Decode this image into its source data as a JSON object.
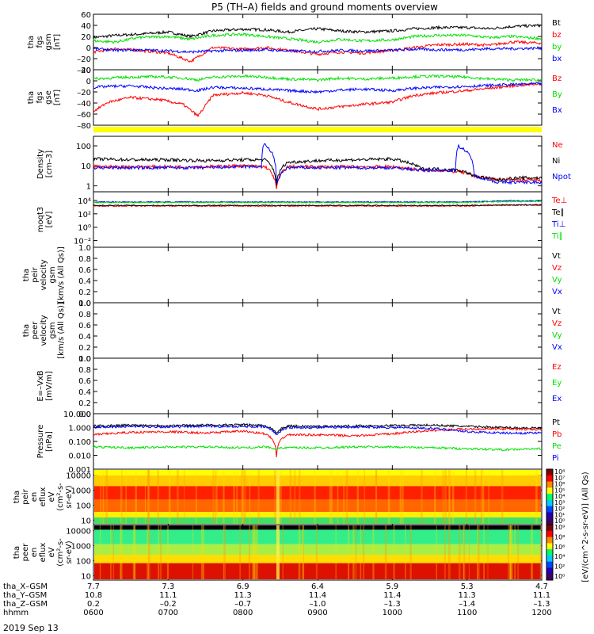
{
  "title": "P5 (TH–A) fields and ground moments overview",
  "date": "2019 Sep 13",
  "colors": {
    "black": "#000000",
    "red": "#ff0000",
    "green": "#00e000",
    "blue": "#0000ff",
    "yellow": "#ffff00"
  },
  "ephemeris": {
    "rows": [
      {
        "label": "tha_X–GSM",
        "values": [
          "7.7",
          "7.3",
          "6.9",
          "6.4",
          "5.9",
          "5.3",
          "4.7"
        ]
      },
      {
        "label": "tha_Y–GSM",
        "values": [
          "10.8",
          "11.1",
          "11.3",
          "11.4",
          "11.4",
          "11.3",
          "11.1"
        ]
      },
      {
        "label": "tha_Z–GSM",
        "values": [
          "0.2",
          "–0.2",
          "–0.7",
          "–1.0",
          "–1.3",
          "–1.4",
          "–1.3"
        ]
      },
      {
        "label": "hhmm",
        "values": [
          "0600",
          "0700",
          "0800",
          "0900",
          "1000",
          "1100",
          "1200"
        ]
      }
    ]
  },
  "chart_data": [
    {
      "type": "line",
      "ylabel_lines": [
        "tha",
        "fgs",
        "gsm",
        "[nT]"
      ],
      "ylim": [
        -40,
        60
      ],
      "yticks": [
        "60",
        "40",
        "20",
        "0",
        "–20",
        "–40"
      ],
      "xlim": [
        600,
        1200
      ],
      "series": [
        {
          "name": "Bt",
          "color": "#000000",
          "x": [
            600,
            630,
            660,
            700,
            730,
            760,
            800,
            830,
            860,
            900,
            930,
            960,
            1000,
            1030,
            1060,
            1100,
            1130,
            1160,
            1200
          ],
          "y": [
            18,
            22,
            24,
            28,
            20,
            30,
            33,
            32,
            28,
            34,
            30,
            28,
            30,
            34,
            36,
            36,
            34,
            38,
            40
          ]
        },
        {
          "name": "bz",
          "color": "#ff0000",
          "x": [
            600,
            630,
            660,
            700,
            730,
            760,
            800,
            830,
            860,
            900,
            930,
            960,
            1000,
            1030,
            1060,
            1100,
            1130,
            1160,
            1200
          ],
          "y": [
            -8,
            -2,
            -5,
            -10,
            -25,
            0,
            -3,
            0,
            -5,
            -12,
            -8,
            -10,
            -5,
            0,
            5,
            6,
            4,
            10,
            8
          ]
        },
        {
          "name": "by",
          "color": "#00e000",
          "x": [
            600,
            630,
            660,
            700,
            730,
            760,
            800,
            830,
            860,
            900,
            930,
            960,
            1000,
            1030,
            1060,
            1100,
            1130,
            1160,
            1200
          ],
          "y": [
            12,
            10,
            18,
            20,
            15,
            22,
            24,
            20,
            16,
            10,
            15,
            12,
            14,
            20,
            22,
            22,
            18,
            20,
            16
          ]
        },
        {
          "name": "bx",
          "color": "#0000ff",
          "x": [
            600,
            630,
            660,
            700,
            730,
            760,
            800,
            830,
            860,
            900,
            930,
            960,
            1000,
            1030,
            1060,
            1100,
            1130,
            1160,
            1200
          ],
          "y": [
            -2,
            -5,
            -4,
            -6,
            -8,
            -6,
            -5,
            -4,
            -6,
            -7,
            -5,
            -6,
            -5,
            -3,
            -4,
            -4,
            -2,
            -2,
            -1
          ]
        }
      ]
    },
    {
      "type": "line",
      "ylabel_lines": [
        "tha",
        "fgs",
        "gse",
        "[nT]"
      ],
      "ylim": [
        -90,
        30
      ],
      "yticks": [
        "20",
        "0",
        "–20",
        "–40",
        "–60",
        "–80"
      ],
      "xlim": [
        600,
        1200
      ],
      "series": [
        {
          "name": "Bz",
          "color": "#ff0000",
          "x": [
            600,
            620,
            650,
            690,
            720,
            740,
            760,
            800,
            830,
            860,
            900,
            930,
            960,
            1000,
            1030,
            1060,
            1100,
            1130,
            1160,
            1200
          ],
          "y": [
            -60,
            -40,
            -30,
            -35,
            -45,
            -70,
            -25,
            -20,
            -25,
            -40,
            -55,
            -50,
            -45,
            -40,
            -25,
            -20,
            -15,
            -10,
            -5,
            0
          ]
        },
        {
          "name": "By",
          "color": "#00e000",
          "x": [
            600,
            620,
            650,
            690,
            720,
            740,
            760,
            800,
            830,
            860,
            900,
            930,
            960,
            1000,
            1030,
            1060,
            1100,
            1130,
            1160,
            1200
          ],
          "y": [
            10,
            12,
            14,
            15,
            12,
            8,
            14,
            16,
            14,
            10,
            8,
            12,
            10,
            12,
            15,
            16,
            14,
            10,
            8,
            8
          ]
        },
        {
          "name": "Bx",
          "color": "#0000ff",
          "x": [
            600,
            620,
            650,
            690,
            720,
            740,
            760,
            800,
            830,
            860,
            900,
            930,
            960,
            1000,
            1030,
            1060,
            1100,
            1130,
            1160,
            1200
          ],
          "y": [
            -8,
            -6,
            -5,
            -10,
            -12,
            -15,
            -8,
            -10,
            -12,
            -15,
            -18,
            -14,
            -12,
            -15,
            -10,
            -8,
            -6,
            -4,
            -2,
            0
          ]
        }
      ]
    },
    {
      "type": "line",
      "ylabel_lines": [
        "Density",
        "[cm–3]"
      ],
      "yscale": "log",
      "ylim": [
        0.5,
        300
      ],
      "yticks": [
        {
          "v": 100,
          "label": "100"
        },
        {
          "v": 10,
          "label": "10"
        },
        {
          "v": 1,
          "label": "1"
        }
      ],
      "xlim": [
        600,
        1200
      ],
      "series": [
        {
          "name": "Ne",
          "color": "#ff0000",
          "x": [
            600,
            650,
            700,
            750,
            800,
            830,
            845,
            860,
            900,
            950,
            1000,
            1040,
            1060,
            1090,
            1110,
            1140,
            1170,
            1200
          ],
          "y": [
            9,
            9,
            9,
            9,
            10,
            9,
            0.6,
            9,
            9,
            9,
            9,
            6,
            6,
            5,
            3,
            2,
            2,
            2
          ]
        },
        {
          "name": "Ni",
          "color": "#000000",
          "x": [
            600,
            650,
            700,
            750,
            800,
            830,
            845,
            860,
            900,
            950,
            1000,
            1040,
            1060,
            1090,
            1110,
            1140,
            1170,
            1200
          ],
          "y": [
            22,
            20,
            20,
            18,
            20,
            20,
            1,
            15,
            18,
            20,
            22,
            7,
            7,
            6,
            3,
            2,
            2.5,
            2.5
          ]
        },
        {
          "name": "Npot",
          "color": "#0000ff",
          "x": [
            600,
            650,
            700,
            750,
            800,
            825,
            828,
            845,
            860,
            900,
            950,
            1000,
            1040,
            1085,
            1088,
            1110,
            1140,
            1170,
            1200
          ],
          "y": [
            8,
            8,
            8,
            8,
            9,
            9,
            120,
            0.8,
            8,
            8,
            8,
            8,
            6,
            6,
            100,
            3,
            1.5,
            1.5,
            1.5
          ]
        }
      ]
    },
    {
      "type": "line",
      "ylabel_lines": [
        "moqt3",
        "[eV]"
      ],
      "yscale": "log",
      "ylim": [
        0.001,
        200000
      ],
      "yticks": [
        {
          "v": 10000,
          "label": "10⁴"
        },
        {
          "v": 100,
          "label": "10²"
        },
        {
          "v": 1,
          "label": "10⁰"
        },
        {
          "v": 0.01,
          "label": "10⁻²"
        }
      ],
      "xlim": [
        600,
        1200
      ],
      "series": [
        {
          "name": "Te⊥",
          "color": "#ff0000",
          "x": [
            600,
            700,
            800,
            900,
            1000,
            1100,
            1150,
            1200
          ],
          "y": [
            1500,
            1500,
            1500,
            1500,
            1500,
            1500,
            2000,
            2000
          ]
        },
        {
          "name": "Te∥",
          "color": "#000000",
          "x": [
            600,
            700,
            800,
            900,
            1000,
            1100,
            1150,
            1200
          ],
          "y": [
            1800,
            1800,
            1800,
            1800,
            1800,
            1800,
            2200,
            2200
          ]
        },
        {
          "name": "Ti⊥",
          "color": "#0000ff",
          "x": [
            600,
            700,
            800,
            900,
            1000,
            1100,
            1150,
            1200
          ],
          "y": [
            6000,
            6000,
            6000,
            6000,
            6000,
            6000,
            9000,
            9000
          ]
        },
        {
          "name": "Ti∥",
          "color": "#00e000",
          "x": [
            600,
            700,
            800,
            900,
            1000,
            1100,
            1150,
            1200
          ],
          "y": [
            5000,
            5000,
            5000,
            5000,
            5000,
            5000,
            7000,
            7000
          ]
        }
      ]
    },
    {
      "type": "line",
      "ylabel_lines": [
        "tha",
        "peir",
        "velocity",
        "gsm",
        "[km/s (All Qs)]"
      ],
      "ylim": [
        0,
        1
      ],
      "yticks": [
        "1.0",
        "0.8",
        "0.6",
        "0.4",
        "0.2",
        "0.0"
      ],
      "xlim": [
        600,
        1200
      ],
      "series": [
        {
          "name": "Vt",
          "color": "#000000",
          "x": [],
          "y": []
        },
        {
          "name": "Vz",
          "color": "#ff0000",
          "x": [],
          "y": []
        },
        {
          "name": "Vy",
          "color": "#00e000",
          "x": [],
          "y": []
        },
        {
          "name": "Vx",
          "color": "#0000ff",
          "x": [],
          "y": []
        }
      ]
    },
    {
      "type": "line",
      "ylabel_lines": [
        "tha",
        "peer",
        "velocity",
        "gsm",
        "[km/s (All Qs)]"
      ],
      "ylim": [
        0,
        1
      ],
      "yticks": [
        "1.0",
        "0.8",
        "0.6",
        "0.4",
        "0.2",
        "0.0"
      ],
      "xlim": [
        600,
        1200
      ],
      "series": [
        {
          "name": "Vt",
          "color": "#000000",
          "x": [],
          "y": []
        },
        {
          "name": "Vz",
          "color": "#ff0000",
          "x": [],
          "y": []
        },
        {
          "name": "Vy",
          "color": "#00e000",
          "x": [],
          "y": []
        },
        {
          "name": "Vx",
          "color": "#0000ff",
          "x": [],
          "y": []
        }
      ]
    },
    {
      "type": "line",
      "ylabel_lines": [
        "E=–VxB",
        "[mV/m]"
      ],
      "ylim": [
        0,
        1
      ],
      "yticks": [
        "1.0",
        "0.8",
        "0.6",
        "0.4",
        "0.2",
        "0.0"
      ],
      "xlim": [
        600,
        1200
      ],
      "series": [
        {
          "name": "Ez",
          "color": "#ff0000",
          "x": [],
          "y": []
        },
        {
          "name": "Ey",
          "color": "#00e000",
          "x": [],
          "y": []
        },
        {
          "name": "Ex",
          "color": "#0000ff",
          "x": [],
          "y": []
        }
      ]
    },
    {
      "type": "line",
      "ylabel_lines": [
        "Pressure",
        "[nPa]"
      ],
      "yscale": "log",
      "ylim": [
        0.001,
        10
      ],
      "yticks": [
        {
          "v": 10,
          "label": "10.000"
        },
        {
          "v": 1,
          "label": "1.000"
        },
        {
          "v": 0.1,
          "label": "0.100"
        },
        {
          "v": 0.01,
          "label": "0.010"
        },
        {
          "v": 0.001,
          "label": "0.001"
        }
      ],
      "xlim": [
        600,
        1200
      ],
      "series": [
        {
          "name": "Pt",
          "color": "#000000",
          "x": [
            600,
            650,
            700,
            750,
            800,
            830,
            845,
            860,
            900,
            950,
            1000,
            1050,
            1100,
            1150,
            1200
          ],
          "y": [
            1.3,
            1.5,
            1.4,
            1.5,
            1.6,
            1.4,
            0.4,
            1.3,
            1.2,
            1.3,
            1.4,
            1.5,
            1.2,
            1,
            0.9
          ]
        },
        {
          "name": "Pb",
          "color": "#ff0000",
          "x": [
            600,
            650,
            700,
            750,
            800,
            830,
            845,
            860,
            900,
            950,
            1000,
            1050,
            1100,
            1150,
            1200
          ],
          "y": [
            0.3,
            0.45,
            0.5,
            0.4,
            0.55,
            0.35,
            0.005,
            0.3,
            0.3,
            0.25,
            0.35,
            0.6,
            0.8,
            0.8,
            0.7
          ]
        },
        {
          "name": "Pe",
          "color": "#00e000",
          "x": [
            600,
            650,
            700,
            750,
            800,
            830,
            845,
            860,
            900,
            950,
            1000,
            1050,
            1100,
            1150,
            1200
          ],
          "y": [
            0.04,
            0.035,
            0.04,
            0.04,
            0.035,
            0.04,
            0.03,
            0.035,
            0.035,
            0.04,
            0.04,
            0.035,
            0.03,
            0.025,
            0.03
          ]
        },
        {
          "name": "Pi",
          "color": "#0000ff",
          "x": [
            600,
            650,
            700,
            750,
            800,
            830,
            845,
            860,
            900,
            950,
            1000,
            1050,
            1100,
            1150,
            1200
          ],
          "y": [
            1,
            1.2,
            1.1,
            1.2,
            1.2,
            1.1,
            0.3,
            1,
            1,
            1.1,
            1,
            0.9,
            0.5,
            0.4,
            0.4
          ]
        }
      ]
    },
    {
      "type": "heatmap",
      "ylabel_lines": [
        "tha",
        "peir",
        "en",
        "eflux",
        "eV",
        "(cm²-s-",
        "sr-eV)"
      ],
      "yscale": "log",
      "ylim": [
        5,
        25000
      ],
      "yticks": [
        {
          "v": 10000,
          "label": "10000"
        },
        {
          "v": 1000,
          "label": "1000"
        },
        {
          "v": 100,
          "label": "100"
        },
        {
          "v": 10,
          "label": "10"
        }
      ],
      "xlim": [
        600,
        1200
      ],
      "colorbar": {
        "label": "[eV/(cm^2-s-sr-eV)] (All Qs)",
        "ticks": [
          "10⁸",
          "10⁷",
          "10⁶",
          "10⁵",
          "10⁴",
          "10³",
          "10²",
          "10¹",
          "10⁰"
        ]
      }
    },
    {
      "type": "heatmap",
      "ylabel_lines": [
        "tha",
        "peer",
        "en",
        "eflux",
        "eV",
        "(cm²-s-",
        "sr-eV)"
      ],
      "yscale": "log",
      "ylim": [
        5,
        25000
      ],
      "yticks": [
        {
          "v": 10000,
          "label": "10000"
        },
        {
          "v": 1000,
          "label": "1000"
        },
        {
          "v": 100,
          "label": "100"
        },
        {
          "v": 10,
          "label": "10"
        }
      ],
      "xlim": [
        600,
        1200
      ],
      "colorbar": {
        "label": "[eV/(cm^2-s-sr-eV)] (All Qs)",
        "ticks": [
          "10⁹",
          "10⁸",
          "10⁶",
          "10⁴",
          "10²",
          "10⁰"
        ]
      }
    }
  ]
}
